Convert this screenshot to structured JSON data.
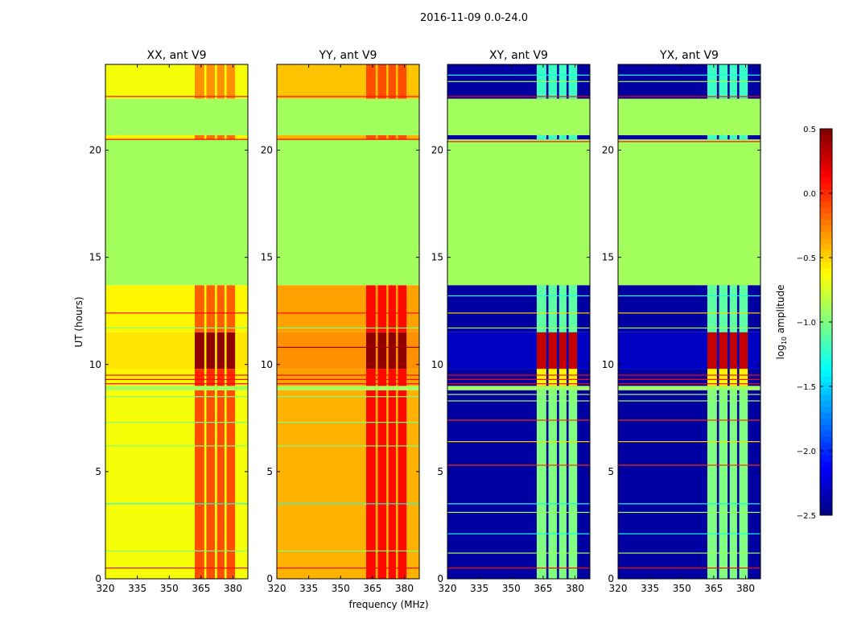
{
  "chart_data": {
    "type": "heatmap",
    "suptitle": "2016-11-09 0.0-24.0",
    "xlabel": "frequency (MHz)",
    "ylabel": "UT (hours)",
    "xlim": [
      320,
      387
    ],
    "ylim": [
      0,
      24
    ],
    "xticks": [
      320,
      335,
      350,
      365,
      380
    ],
    "yticks": [
      0,
      5,
      10,
      15,
      20
    ],
    "hot_columns": [
      [
        362,
        366.5
      ],
      [
        367.5,
        371.5
      ],
      [
        372.5,
        376
      ],
      [
        377,
        381
      ]
    ],
    "colorbar": {
      "label": "log10 amplitude",
      "label_main": "log",
      "label_sub": "10",
      "label_rest": " amplitude",
      "range": [
        -2.5,
        0.5
      ],
      "ticks": [
        "0.5",
        "0.0",
        "−0.5",
        "−1.0",
        "−1.5",
        "−2.0",
        "−2.5"
      ],
      "colormap": "jet"
    },
    "panels": [
      {
        "title": "XX, ant V9",
        "segments": [
          [
            0,
            8.8,
            -0.65,
            -0.1
          ],
          [
            8.8,
            9.0,
            -0.9,
            -0.9
          ],
          [
            9.0,
            9.8,
            -0.6,
            0.0
          ],
          [
            9.8,
            11.5,
            -0.55,
            0.45
          ],
          [
            11.5,
            13.7,
            -0.6,
            -0.15
          ],
          [
            13.7,
            20.5,
            -0.9,
            -0.9
          ],
          [
            20.5,
            20.7,
            -0.6,
            -0.2
          ],
          [
            20.7,
            22.4,
            -0.9,
            -0.9
          ],
          [
            22.4,
            24,
            -0.65,
            -0.3
          ]
        ],
        "lines": [
          [
            0.5,
            0.1
          ],
          [
            1.3,
            -1.0
          ],
          [
            3.5,
            -1.3
          ],
          [
            6.2,
            -1.0
          ],
          [
            7.3,
            -1.0
          ],
          [
            8.5,
            -1.0
          ],
          [
            9.1,
            0.1
          ],
          [
            9.3,
            0.1
          ],
          [
            9.5,
            0.1
          ],
          [
            11.7,
            -1.0
          ],
          [
            12.4,
            0.1
          ],
          [
            20.5,
            0.1
          ],
          [
            22.5,
            0.1
          ]
        ]
      },
      {
        "title": "YY, ant V9",
        "segments": [
          [
            0,
            8.8,
            -0.4,
            0.1
          ],
          [
            8.8,
            9.0,
            -0.9,
            -0.9
          ],
          [
            9.0,
            9.8,
            -0.35,
            0.1
          ],
          [
            9.8,
            11.5,
            -0.3,
            0.45
          ],
          [
            11.5,
            13.7,
            -0.35,
            0.1
          ],
          [
            13.7,
            20.5,
            -0.9,
            -0.9
          ],
          [
            20.5,
            20.7,
            -0.4,
            -0.1
          ],
          [
            20.7,
            22.4,
            -0.9,
            -0.9
          ],
          [
            22.4,
            24,
            -0.45,
            -0.1
          ]
        ],
        "lines": [
          [
            0.5,
            0.1
          ],
          [
            1.3,
            -1.0
          ],
          [
            3.5,
            -1.3
          ],
          [
            6.2,
            -1.0
          ],
          [
            7.3,
            -1.0
          ],
          [
            8.5,
            -1.0
          ],
          [
            9.1,
            0.1
          ],
          [
            9.3,
            0.1
          ],
          [
            9.5,
            0.1
          ],
          [
            10.8,
            0.4
          ],
          [
            11.7,
            -1.0
          ],
          [
            12.4,
            0.1
          ],
          [
            20.5,
            0.1
          ],
          [
            22.5,
            0.1
          ]
        ]
      },
      {
        "title": "XY, ant V9",
        "segments": [
          [
            0,
            8.8,
            -2.4,
            -1.0
          ],
          [
            8.8,
            9.0,
            -0.9,
            -0.9
          ],
          [
            9.0,
            9.8,
            -2.4,
            -0.6
          ],
          [
            9.8,
            11.5,
            -2.3,
            0.3
          ],
          [
            11.5,
            13.7,
            -2.4,
            -1.1
          ],
          [
            13.7,
            20.5,
            -0.9,
            -0.9
          ],
          [
            20.5,
            20.7,
            -2.4,
            -1.2
          ],
          [
            20.7,
            22.4,
            -0.9,
            -0.9
          ],
          [
            22.4,
            24,
            -2.4,
            -1.2
          ]
        ],
        "lines": [
          [
            0.5,
            0.1
          ],
          [
            1.2,
            -0.9
          ],
          [
            2.1,
            -1.3
          ],
          [
            3.1,
            -0.9
          ],
          [
            3.5,
            -1.3
          ],
          [
            5.3,
            0.0
          ],
          [
            6.4,
            -0.5
          ],
          [
            7.4,
            0.0
          ],
          [
            8.3,
            -0.9
          ],
          [
            8.6,
            -0.9
          ],
          [
            9.1,
            0.1
          ],
          [
            9.3,
            0.1
          ],
          [
            9.5,
            0.1
          ],
          [
            11.7,
            -0.9
          ],
          [
            12.4,
            -0.5
          ],
          [
            13.2,
            -1.3
          ],
          [
            20.4,
            0.1
          ],
          [
            22.5,
            0.1
          ],
          [
            23.2,
            -0.9
          ],
          [
            23.5,
            -1.3
          ]
        ]
      },
      {
        "title": "YX, ant V9",
        "segments": [
          [
            0,
            8.8,
            -2.4,
            -1.0
          ],
          [
            8.8,
            9.0,
            -0.9,
            -0.9
          ],
          [
            9.0,
            9.8,
            -2.4,
            -0.6
          ],
          [
            9.8,
            11.5,
            -2.3,
            0.3
          ],
          [
            11.5,
            13.7,
            -2.4,
            -1.1
          ],
          [
            13.7,
            20.5,
            -0.9,
            -0.9
          ],
          [
            20.5,
            20.7,
            -2.4,
            -1.2
          ],
          [
            20.7,
            22.4,
            -0.9,
            -0.9
          ],
          [
            22.4,
            24,
            -2.4,
            -1.2
          ]
        ],
        "lines": [
          [
            0.5,
            0.1
          ],
          [
            1.2,
            -0.9
          ],
          [
            2.1,
            -1.3
          ],
          [
            3.1,
            -0.9
          ],
          [
            3.5,
            -1.3
          ],
          [
            5.3,
            0.0
          ],
          [
            6.4,
            -0.5
          ],
          [
            7.4,
            0.0
          ],
          [
            8.3,
            -0.9
          ],
          [
            8.6,
            -0.9
          ],
          [
            9.1,
            0.1
          ],
          [
            9.3,
            0.1
          ],
          [
            9.5,
            0.1
          ],
          [
            11.7,
            -0.9
          ],
          [
            12.4,
            -0.5
          ],
          [
            13.2,
            -1.3
          ],
          [
            20.4,
            0.1
          ],
          [
            22.5,
            0.1
          ],
          [
            23.2,
            -0.9
          ],
          [
            23.5,
            -1.3
          ]
        ]
      }
    ]
  }
}
